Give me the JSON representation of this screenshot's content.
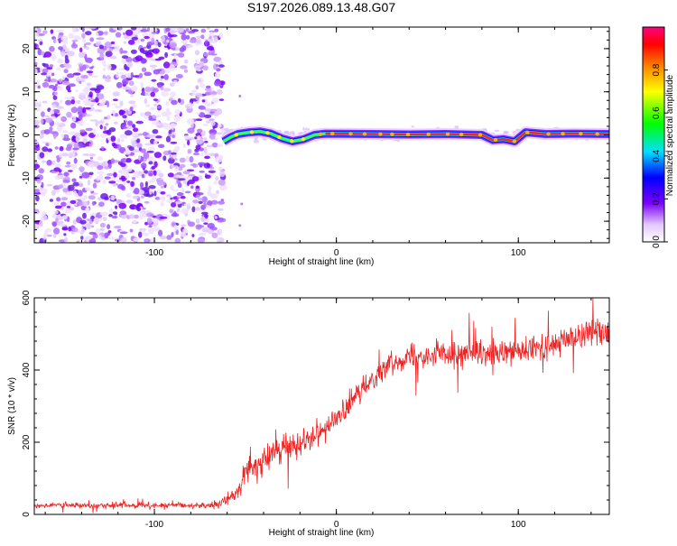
{
  "chart_data": [
    {
      "type": "heatmap",
      "title": "S197.2026.089.13.48.G07",
      "xlabel": "Height of straight line (km)",
      "ylabel": "Frequency (Hz)",
      "xlim": [
        -166,
        150
      ],
      "ylim": [
        -25,
        25
      ],
      "xticks": [
        -100,
        0,
        100
      ],
      "yticks": [
        -20,
        -10,
        0,
        10,
        20
      ],
      "noise_region_x": [
        -166,
        -62
      ],
      "signal_track": [
        {
          "x": -62,
          "f": -1.5
        },
        {
          "x": -58,
          "f": -0.5
        },
        {
          "x": -54,
          "f": 0.2
        },
        {
          "x": -48,
          "f": 0.6
        },
        {
          "x": -42,
          "f": 0.8
        },
        {
          "x": -36,
          "f": 0.3
        },
        {
          "x": -30,
          "f": -0.8
        },
        {
          "x": -24,
          "f": -1.5
        },
        {
          "x": -18,
          "f": -1.0
        },
        {
          "x": -12,
          "f": 0.0
        },
        {
          "x": -6,
          "f": 0.3
        },
        {
          "x": 20,
          "f": 0.2
        },
        {
          "x": 40,
          "f": 0.1
        },
        {
          "x": 60,
          "f": 0.2
        },
        {
          "x": 80,
          "f": 0.0
        },
        {
          "x": 86,
          "f": -1.2
        },
        {
          "x": 92,
          "f": -1.0
        },
        {
          "x": 98,
          "f": -1.5
        },
        {
          "x": 104,
          "f": 0.6
        },
        {
          "x": 115,
          "f": 0.2
        },
        {
          "x": 130,
          "f": 0.3
        },
        {
          "x": 150,
          "f": 0.2
        }
      ],
      "colorbar": {
        "label": "Normalized spectral amplitude",
        "range": [
          0,
          1
        ],
        "ticks": [
          "0.0",
          "0.2",
          "0.4",
          "0.6",
          "0.8"
        ]
      }
    },
    {
      "type": "line",
      "xlabel": "Height of straight line (km)",
      "ylabel": "SNR (10 * v/v)",
      "xlim": [
        -166,
        150
      ],
      "ylim": [
        0,
        600
      ],
      "xticks": [
        -100,
        0,
        100
      ],
      "yticks": [
        0,
        200,
        400,
        600
      ],
      "series": [
        {
          "name": "SNR",
          "color": "#ee2222",
          "x": [
            -166,
            -140,
            -120,
            -100,
            -80,
            -65,
            -55,
            -50,
            -45,
            -40,
            -30,
            -20,
            -10,
            0,
            10,
            20,
            30,
            40,
            50,
            60,
            70,
            80,
            90,
            100,
            110,
            120,
            130,
            140,
            150
          ],
          "values": [
            25,
            25,
            25,
            25,
            25,
            25,
            60,
            110,
            130,
            150,
            180,
            200,
            230,
            260,
            320,
            380,
            420,
            440,
            440,
            445,
            445,
            440,
            440,
            450,
            460,
            470,
            490,
            510,
            500
          ],
          "noise": [
            12,
            12,
            12,
            12,
            12,
            12,
            35,
            50,
            55,
            55,
            50,
            50,
            50,
            45,
            45,
            45,
            40,
            45,
            45,
            50,
            50,
            50,
            55,
            55,
            55,
            55,
            55,
            55,
            55
          ]
        }
      ]
    }
  ]
}
